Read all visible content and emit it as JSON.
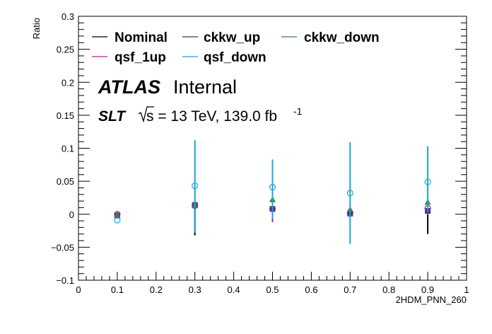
{
  "chart_data": {
    "type": "scatter",
    "xlabel": "2HDM_PNN_260",
    "ylabel": "Ratio",
    "xlim": [
      0,
      1
    ],
    "ylim": [
      -0.1,
      0.3
    ],
    "x_ticks": [
      0,
      0.1,
      0.2,
      0.3,
      0.4,
      0.5,
      0.6,
      0.7,
      0.8,
      0.9,
      1
    ],
    "x_tick_labels": [
      "0",
      "0.1",
      "0.2",
      "0.3",
      "0.4",
      "0.5",
      "0.6",
      "0.7",
      "0.8",
      "0.9",
      "1"
    ],
    "y_ticks": [
      -0.1,
      -0.05,
      0,
      0.05,
      0.1,
      0.15,
      0.2,
      0.25,
      0.3
    ],
    "y_tick_labels": [
      "−0.1",
      "−0.05",
      "0",
      "0.05",
      "0.1",
      "0.15",
      "0.2",
      "0.25",
      "0.3"
    ],
    "legend_position": "top-left",
    "grid": false,
    "x": [
      0.1,
      0.3,
      0.5,
      0.7,
      0.9
    ],
    "series": [
      {
        "name": "Nominal",
        "color": "#000000",
        "marker": "none",
        "values": [
          0.0,
          0.013,
          0.007,
          0.0,
          0.005
        ],
        "err_low": [
          0.0,
          0.045,
          0.0,
          0.0,
          0.035
        ],
        "err_high": [
          0.0,
          0.0,
          0.0,
          0.0,
          0.0
        ]
      },
      {
        "name": "ckkw_up",
        "color": "#1f3f7f",
        "marker": "square",
        "values": [
          -0.002,
          0.014,
          0.008,
          0.001,
          0.005
        ],
        "err_low": [
          0.0,
          0.0,
          0.0,
          0.0,
          0.0
        ],
        "err_high": [
          0.0,
          0.0,
          0.0,
          0.0,
          0.0
        ]
      },
      {
        "name": "ckkw_down",
        "color": "#2e8b2e",
        "marker": "triangle",
        "values": [
          -0.001,
          0.013,
          0.022,
          0.007,
          0.018
        ],
        "err_low": [
          0.0,
          0.0,
          0.0,
          0.0,
          0.0
        ],
        "err_high": [
          0.0,
          0.0,
          0.0,
          0.0,
          0.0
        ]
      },
      {
        "name": "qsf_1up",
        "color": "#b0208a",
        "marker": "circle-open",
        "values": [
          0.0,
          0.013,
          0.008,
          0.002,
          0.009
        ],
        "err_low": [
          0.0,
          0.0,
          0.02,
          0.0,
          0.01
        ],
        "err_high": [
          0.0,
          0.0,
          0.0,
          0.0,
          0.0
        ]
      },
      {
        "name": "qsf_down",
        "color": "#1aa5d6",
        "marker": "circle-open",
        "values": [
          -0.009,
          0.043,
          0.041,
          0.032,
          0.049
        ],
        "err_low": [
          0.0,
          0.071,
          0.048,
          0.077,
          0.045
        ],
        "err_high": [
          0.0,
          0.069,
          0.042,
          0.077,
          0.054
        ]
      }
    ]
  },
  "legend": [
    "Nominal",
    "ckkw_up",
    "ckkw_down",
    "qsf_1up",
    "qsf_down"
  ],
  "atlas_label": {
    "experiment": "ATLAS",
    "status": "Internal",
    "channel": "SLT",
    "energy_text": "s = 13 TeV, 139.0 fb",
    "lumi_exponent": "-1"
  }
}
